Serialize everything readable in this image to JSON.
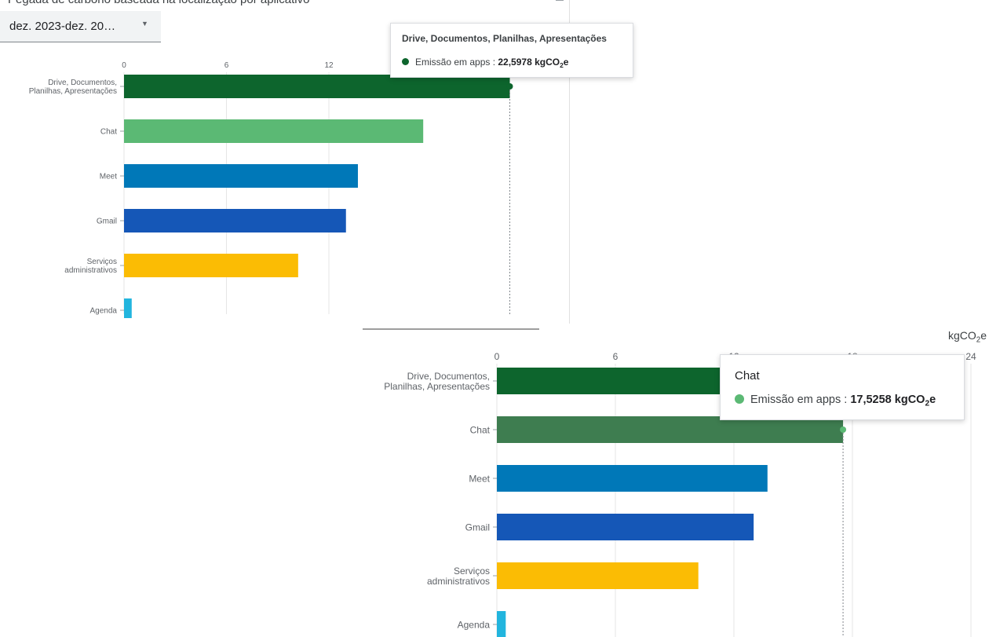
{
  "page": {
    "title": "Pegada de carbono baseada na localização por aplicativo",
    "date_filter": "dez. 2023-dez. 20…"
  },
  "chart_data": [
    {
      "type": "bar",
      "orientation": "horizontal",
      "categories": [
        "Drive, Documentos, Planilhas, Apresentações",
        "Chat",
        "Meet",
        "Gmail",
        "Serviços administrativos",
        "Agenda"
      ],
      "series": [
        {
          "name": "Emissão em apps",
          "values": [
            22.5978,
            17.5258,
            13.7,
            13.0,
            10.2,
            0.45
          ]
        }
      ],
      "colors": [
        "#0d652d",
        "#5bb974",
        "#0078b8",
        "#1557b7",
        "#fbbc04",
        "#22b5de"
      ],
      "xlim": [
        0,
        24
      ],
      "ticks": [
        0,
        6,
        12
      ],
      "unit": "kgCO2e",
      "grid": true,
      "tooltip": {
        "category": "Drive, Documentos, Planilhas, Apresentações",
        "series_label": "Emissão em apps : ",
        "value_text": "22,5978",
        "unit_main": "kgCO",
        "unit_sub": "2",
        "unit_tail": "e",
        "dot_color": "#0d652d"
      }
    },
    {
      "type": "bar",
      "orientation": "horizontal",
      "categories": [
        "Drive, Documentos, Planilhas, Apresentações",
        "Chat",
        "Meet",
        "Gmail",
        "Serviços administrativos",
        "Agenda"
      ],
      "series": [
        {
          "name": "Emissão em apps",
          "values": [
            22.5978,
            17.5258,
            13.7,
            13.0,
            10.2,
            0.45
          ]
        }
      ],
      "colors": [
        "#0d652d",
        "#3e7d50",
        "#0078b8",
        "#1557b7",
        "#fbbc04",
        "#22b5de"
      ],
      "xlim": [
        0,
        24
      ],
      "ticks": [
        0,
        6,
        12,
        18,
        24
      ],
      "unit_label": {
        "main": "kgCO",
        "sub": "2",
        "tail": "e"
      },
      "grid": true,
      "tooltip": {
        "category": "Chat",
        "series_label": "Emissão em apps : ",
        "value_text": "17,5258",
        "unit_main": "kgCO",
        "unit_sub": "2",
        "unit_tail": "e",
        "dot_color": "#5bb974"
      }
    }
  ]
}
